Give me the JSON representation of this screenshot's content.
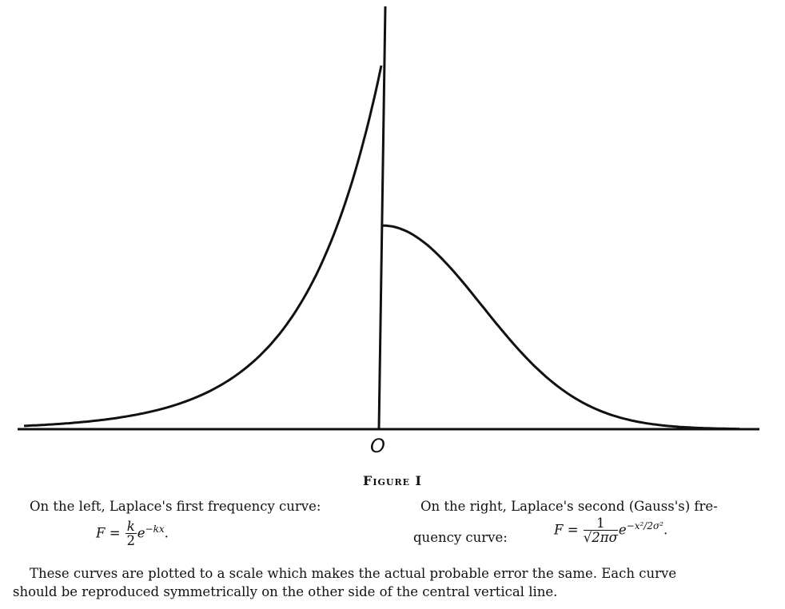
{
  "figure": {
    "origin_label": "O",
    "title": "Figure I"
  },
  "chart_data": {
    "type": "line",
    "title": "Figure I",
    "series": [
      {
        "name": "Laplace's first frequency curve",
        "side": "left",
        "formula": "F = (k/2) e^{-kx}",
        "peak_relative": 1.0
      },
      {
        "name": "Laplace's second (Gauss's) frequency curve",
        "side": "right",
        "formula": "F = 1/(sqrt(2 pi) sigma) e^{-x^2/2 sigma^2}",
        "peak_relative": 0.56
      }
    ],
    "xlabel": "",
    "ylabel": ""
  },
  "caption": {
    "left_text": "On the left, Laplace's first frequency curve:",
    "left_formula": {
      "lhs": "F =",
      "num": "k",
      "den": "2",
      "exp_base": "e",
      "exp": "−kx",
      "end": "."
    },
    "right_text": "On the right, Laplace's second (Gauss's) fre-",
    "right_text2": "quency curve:",
    "right_formula": {
      "lhs": "F =",
      "num": "1",
      "den": "√2πσ",
      "exp_base": "e",
      "exp": "−x²/2σ²",
      "end": "."
    },
    "footer_line1": "These curves are plotted to a scale which makes the actual probable error the same.  Each curve",
    "footer_line2": "should be reproduced symmetrically on the other side of the central vertical line."
  }
}
